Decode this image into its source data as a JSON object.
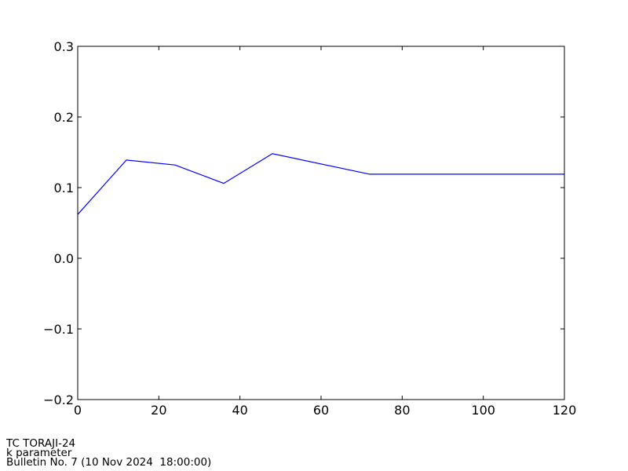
{
  "chart_data": {
    "type": "line",
    "title": "",
    "xlabel": "",
    "ylabel": "",
    "xlim": [
      0,
      120
    ],
    "ylim": [
      -0.2,
      0.3
    ],
    "xticks": [
      0,
      20,
      40,
      60,
      80,
      100,
      120
    ],
    "xtick_labels": [
      "0",
      "20",
      "40",
      "60",
      "80",
      "100",
      "120"
    ],
    "yticks": [
      -0.2,
      -0.1,
      0.0,
      0.1,
      0.2,
      0.3
    ],
    "ytick_labels": [
      "−0.2",
      "−0.1",
      "0.0",
      "0.1",
      "0.2",
      "0.3"
    ],
    "grid": false,
    "series": [
      {
        "color": "#0000ff",
        "x": [
          0,
          12,
          24,
          36,
          48,
          72,
          120
        ],
        "y": [
          0.062,
          0.139,
          0.132,
          0.106,
          0.148,
          0.119,
          0.119
        ]
      }
    ]
  },
  "captions": {
    "line1": "TC TORAJI-24",
    "line2": "k parameter",
    "line3": "Bulletin No. 7 (10 Nov 2024  18:00:00)"
  }
}
